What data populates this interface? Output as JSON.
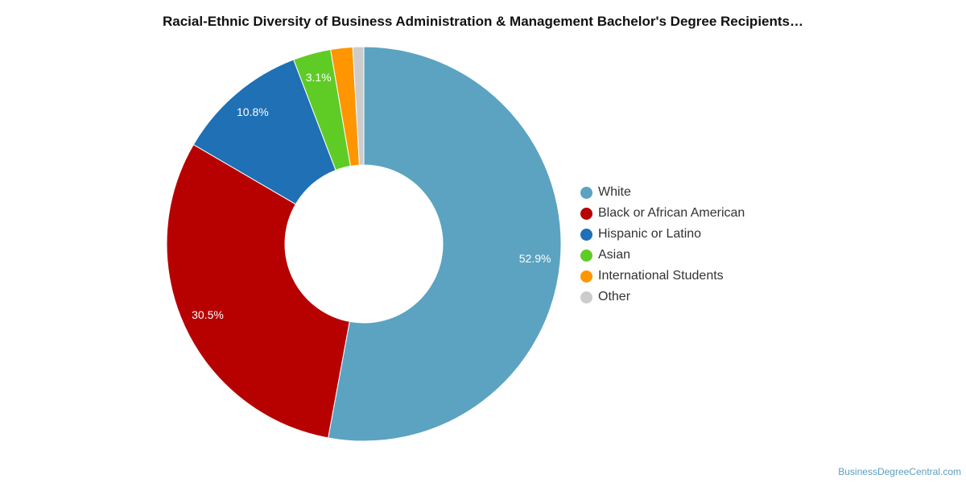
{
  "chart_data": {
    "type": "pie",
    "title": "Racial-Ethnic Diversity of Business Administration & Management Bachelor's Degree Recipients…",
    "legend_position": "right",
    "slices": [
      {
        "name": "White",
        "value": 52.9,
        "label": "52.9%",
        "color": "#5ba3c1"
      },
      {
        "name": "Black or African American",
        "value": 30.5,
        "label": "30.5%",
        "color": "#b70000"
      },
      {
        "name": "Hispanic or Latino",
        "value": 10.8,
        "label": "10.8%",
        "color": "#1f70b5"
      },
      {
        "name": "Asian",
        "value": 3.1,
        "label": "3.1%",
        "color": "#5fcc26"
      },
      {
        "name": "International Students",
        "value": 1.8,
        "label": "",
        "color": "#ff9500"
      },
      {
        "name": "Other",
        "value": 0.9,
        "label": "",
        "color": "#cccccc"
      }
    ]
  },
  "credit": "BusinessDegreeCentral.com"
}
